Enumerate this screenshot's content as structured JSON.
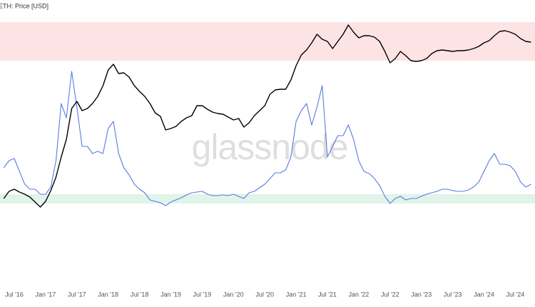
{
  "chart_data": {
    "type": "line",
    "legend_text": "ETH: Price [USD]",
    "watermark": "glassnode",
    "xlim": [
      3.27,
      105.77
    ],
    "ylim": [
      0,
      400
    ],
    "xticks": [
      {
        "value": 6,
        "label": "Jul '16"
      },
      {
        "value": 12,
        "label": "Jan '17"
      },
      {
        "value": 18,
        "label": "Jul '17"
      },
      {
        "value": 24,
        "label": "Jan '18"
      },
      {
        "value": 30,
        "label": "Jul '18"
      },
      {
        "value": 36,
        "label": "Jan '19"
      },
      {
        "value": 42,
        "label": "Jul '19"
      },
      {
        "value": 48,
        "label": "Jan '20"
      },
      {
        "value": 54,
        "label": "Jul '20"
      },
      {
        "value": 60,
        "label": "Jan '21"
      },
      {
        "value": 66,
        "label": "Jul '21"
      },
      {
        "value": 72,
        "label": "Jan '22"
      },
      {
        "value": 78,
        "label": "Jul '22"
      },
      {
        "value": 84,
        "label": "Jan '23"
      },
      {
        "value": 90,
        "label": "Jul '23"
      },
      {
        "value": 96,
        "label": "Jan '24"
      },
      {
        "value": 102,
        "label": "Jul '24"
      }
    ],
    "bands": [
      {
        "from": 315,
        "to": 369,
        "color": "#fde3e3"
      },
      {
        "from": 115,
        "to": 128,
        "color": "#e0f4ea"
      }
    ],
    "x": [
      4,
      5,
      6,
      7,
      8,
      9,
      10,
      11,
      12,
      13,
      14,
      15,
      16,
      17,
      18,
      19,
      20,
      21,
      22,
      23,
      24,
      25,
      26,
      27,
      28,
      29,
      30,
      31,
      32,
      33,
      34,
      35,
      36,
      37,
      38,
      39,
      40,
      41,
      42,
      43,
      44,
      45,
      46,
      47,
      48,
      49,
      50,
      51,
      52,
      53,
      54,
      55,
      56,
      57,
      58,
      59,
      60,
      61,
      62,
      63,
      64,
      65,
      66,
      67,
      68,
      69,
      70,
      71,
      72,
      73,
      74,
      75,
      76,
      77,
      78,
      79,
      80,
      81,
      82,
      83,
      84,
      85,
      86,
      87,
      88,
      89,
      90,
      91,
      92,
      93,
      94,
      95,
      96,
      97,
      98,
      99,
      100,
      101,
      102,
      103,
      104,
      105
    ],
    "series": [
      {
        "name": "ETH: Price [USD]",
        "color": "#000000",
        "values": [
          122,
          132,
          135,
          131,
          128,
          124,
          117,
          110,
          118,
          133,
          152,
          180,
          205,
          248,
          258,
          245,
          248,
          255,
          265,
          280,
          302,
          310,
          297,
          298,
          292,
          280,
          272,
          265,
          255,
          242,
          237,
          218,
          220,
          223,
          230,
          235,
          238,
          252,
          252,
          247,
          243,
          241,
          240,
          236,
          232,
          234,
          222,
          228,
          238,
          245,
          252,
          268,
          274,
          275,
          275,
          288,
          308,
          323,
          330,
          340,
          352,
          345,
          342,
          332,
          342,
          352,
          365,
          355,
          347,
          350,
          350,
          348,
          342,
          328,
          312,
          318,
          328,
          322,
          315,
          314,
          315,
          318,
          325,
          329,
          330,
          329,
          328,
          329,
          329,
          330,
          332,
          335,
          340,
          343,
          350,
          356,
          357,
          355,
          352,
          346,
          342,
          341
        ]
      },
      {
        "color": "#5b7be0",
        "values": [
          165,
          175,
          178,
          160,
          142,
          135,
          135,
          128,
          128,
          138,
          175,
          255,
          235,
          300,
          250,
          195,
          195,
          185,
          188,
          185,
          220,
          230,
          185,
          165,
          155,
          142,
          135,
          130,
          120,
          118,
          116,
          112,
          117,
          120,
          123,
          127,
          130,
          131,
          132,
          128,
          126,
          126,
          127,
          126,
          128,
          125,
          122,
          130,
          132,
          137,
          142,
          150,
          158,
          158,
          162,
          180,
          230,
          245,
          255,
          225,
          250,
          280,
          180,
          195,
          210,
          210,
          225,
          205,
          175,
          160,
          157,
          150,
          140,
          125,
          115,
          122,
          125,
          120,
          122,
          122,
          125,
          128,
          130,
          132,
          135,
          135,
          133,
          132,
          132,
          134,
          138,
          145,
          160,
          175,
          185,
          170,
          170,
          168,
          160,
          145,
          138,
          142
        ]
      }
    ]
  }
}
